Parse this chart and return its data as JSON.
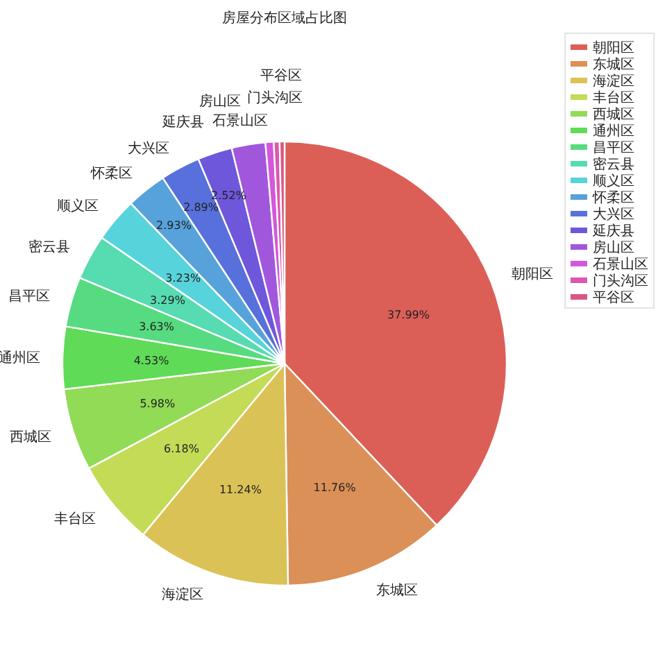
{
  "chart_data": {
    "type": "pie",
    "title": "房屋分布区域占比图",
    "categories": [
      "朝阳区",
      "东城区",
      "海淀区",
      "丰台区",
      "西城区",
      "通州区",
      "昌平区",
      "密云县",
      "顺义区",
      "怀柔区",
      "大兴区",
      "延庆县",
      "房山区",
      "石景山区",
      "门头沟区",
      "平谷区"
    ],
    "values": [
      37.99,
      11.76,
      11.24,
      6.18,
      5.98,
      4.53,
      3.63,
      3.29,
      3.23,
      2.93,
      2.89,
      2.52,
      2.45,
      0.6,
      0.42,
      0.36
    ],
    "value_labels": [
      "37.99%",
      "11.76%",
      "11.24%",
      "6.18%",
      "5.98%",
      "4.53%",
      "3.63%",
      "3.29%",
      "3.23%",
      "2.93%",
      "2.89%",
      "2.52%",
      null,
      null,
      null,
      null
    ],
    "colors": [
      "#db5f57",
      "#db9057",
      "#dbc257",
      "#c3db57",
      "#91db57",
      "#5fdb57",
      "#57db80",
      "#57dbb1",
      "#57d3db",
      "#57a2db",
      "#5770db",
      "#6f57db",
      "#a157db",
      "#d357db",
      "#db57b2",
      "#db5781"
    ],
    "legend": "top right"
  }
}
